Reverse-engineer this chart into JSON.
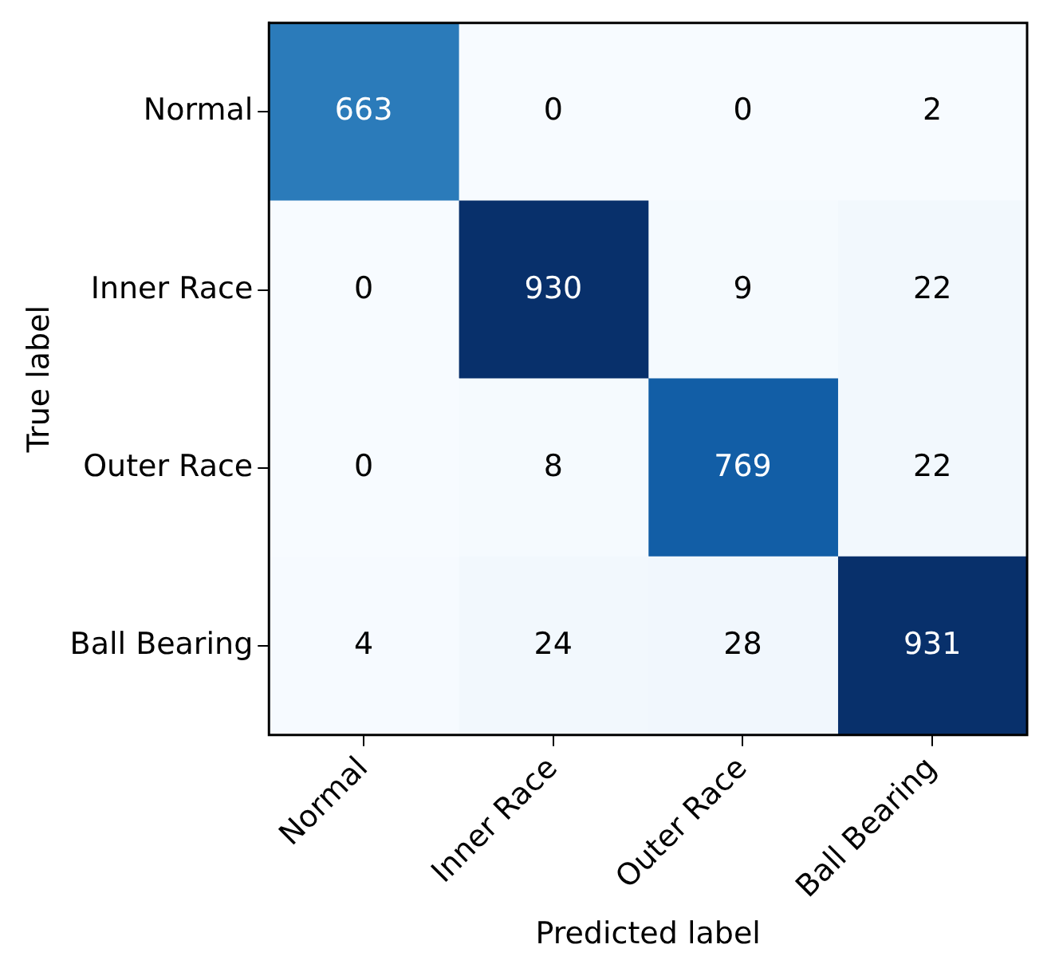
{
  "chart_data": {
    "type": "heatmap",
    "xlabel": "Predicted label",
    "ylabel": "True label",
    "categories": [
      "Normal",
      "Inner Race",
      "Outer Race",
      "Ball Bearing"
    ],
    "y_categories": [
      "Normal",
      "Inner Race",
      "Outer Race",
      "Ball Bearing"
    ],
    "cells": [
      [
        663,
        0,
        0,
        2
      ],
      [
        0,
        930,
        9,
        22
      ],
      [
        0,
        8,
        769,
        22
      ],
      [
        4,
        24,
        28,
        931
      ]
    ],
    "data_labels": true
  }
}
